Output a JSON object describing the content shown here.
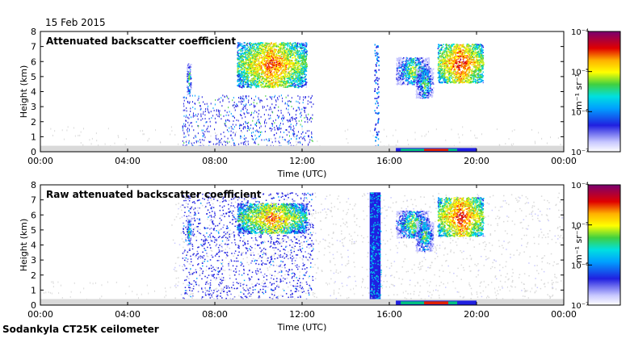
{
  "header": {
    "date": "15 Feb 2015"
  },
  "footer": {
    "instrument": "Sodankyla CT25K ceilometer"
  },
  "colors": {
    "cloud_gray": "#d9d9d9",
    "colormap": [
      "#ffffff",
      "#c8c8ff",
      "#7070f0",
      "#2020e0",
      "#00a0ff",
      "#00e0e0",
      "#40d040",
      "#b0e030",
      "#ffff00",
      "#ffb000",
      "#ff5000",
      "#e00000",
      "#b00040",
      "#7a0070"
    ]
  },
  "chart_data": [
    {
      "type": "heatmap",
      "title": "Attenuated backscatter coefficient",
      "xlabel": "Time (UTC)",
      "ylabel": "Height (km)",
      "xticks": [
        "00:00",
        "04:00",
        "08:00",
        "12:00",
        "16:00",
        "20:00",
        "00:00"
      ],
      "xlim": [
        0,
        24
      ],
      "ylim": [
        0,
        8
      ],
      "yticks": [
        "0",
        "1",
        "2",
        "3",
        "4",
        "5",
        "6",
        "7",
        "8"
      ],
      "colorbar": {
        "label": "m⁻¹ sr⁻¹",
        "scale": "log",
        "range": [
          1e-07,
          0.0001
        ],
        "ticks": [
          "10⁻⁷",
          "10⁻⁶",
          "10⁻⁵",
          "10⁻⁴"
        ]
      },
      "features": [
        {
          "kind": "thin_cloud",
          "t_start": 6.7,
          "t_end": 6.9,
          "h_bottom": 3.8,
          "h_top": 5.9,
          "intensity": 0.55
        },
        {
          "kind": "thick_cloud",
          "t_start": 9.0,
          "t_end": 12.2,
          "h_bottom": 4.3,
          "h_top": 7.3,
          "intensity": 0.85
        },
        {
          "kind": "thick_cloud",
          "t_start": 16.3,
          "t_end": 17.8,
          "h_bottom": 4.5,
          "h_top": 6.3,
          "intensity": 0.6
        },
        {
          "kind": "thick_cloud",
          "t_start": 17.2,
          "t_end": 18.0,
          "h_bottom": 3.6,
          "h_top": 5.6,
          "intensity": 0.55
        },
        {
          "kind": "thick_cloud",
          "t_start": 18.2,
          "t_end": 20.3,
          "h_bottom": 4.6,
          "h_top": 7.2,
          "intensity": 0.9
        },
        {
          "kind": "precip",
          "t_start": 6.5,
          "t_end": 12.5,
          "h_bottom": 0.4,
          "h_top": 3.8,
          "intensity": 0.25
        },
        {
          "kind": "streak",
          "t_start": 15.3,
          "t_end": 15.5,
          "h_bottom": 0.0,
          "h_top": 7.2,
          "intensity": 0.3
        },
        {
          "kind": "boundary_layer",
          "t_start": 0.0,
          "t_end": 24.0,
          "h_bottom": 0.0,
          "h_top": 0.4,
          "intensity": 0.1
        },
        {
          "kind": "surface",
          "t_start": 16.3,
          "t_end": 20.0,
          "h_bottom": 0.0,
          "h_top": 0.25,
          "intensity": 0.95
        }
      ]
    },
    {
      "type": "heatmap",
      "title": "Raw attenuated backscatter coefficient",
      "xlabel": "Time (UTC)",
      "ylabel": "Height (km)",
      "xticks": [
        "00:00",
        "04:00",
        "08:00",
        "12:00",
        "16:00",
        "20:00",
        "00:00"
      ],
      "xlim": [
        0,
        24
      ],
      "ylim": [
        0,
        8
      ],
      "yticks": [
        "0",
        "1",
        "2",
        "3",
        "4",
        "5",
        "6",
        "7",
        "8"
      ],
      "colorbar": {
        "label": "m⁻¹ sr⁻¹",
        "scale": "log",
        "range": [
          1e-07,
          0.0001
        ],
        "ticks": [
          "10⁻⁷",
          "10⁻⁶",
          "10⁻⁵",
          "10⁻⁴"
        ]
      },
      "features": [
        {
          "kind": "noise",
          "t_start": 6.0,
          "t_end": 24.0,
          "h_bottom": 0.0,
          "h_top": 7.5,
          "intensity": 0.2
        },
        {
          "kind": "noise_blue",
          "t_start": 6.5,
          "t_end": 12.5,
          "h_bottom": 0.4,
          "h_top": 7.5,
          "intensity": 0.35
        },
        {
          "kind": "column",
          "t_start": 15.1,
          "t_end": 15.6,
          "h_bottom": 0.0,
          "h_top": 7.5,
          "intensity": 0.45
        },
        {
          "kind": "thin_cloud",
          "t_start": 6.7,
          "t_end": 6.9,
          "h_bottom": 4.0,
          "h_top": 5.8,
          "intensity": 0.55
        },
        {
          "kind": "thick_cloud",
          "t_start": 9.0,
          "t_end": 12.2,
          "h_bottom": 4.8,
          "h_top": 6.8,
          "intensity": 0.8
        },
        {
          "kind": "thick_cloud",
          "t_start": 16.3,
          "t_end": 17.8,
          "h_bottom": 4.5,
          "h_top": 6.3,
          "intensity": 0.6
        },
        {
          "kind": "thick_cloud",
          "t_start": 17.2,
          "t_end": 18.0,
          "h_bottom": 3.6,
          "h_top": 5.6,
          "intensity": 0.55
        },
        {
          "kind": "thick_cloud",
          "t_start": 18.2,
          "t_end": 20.3,
          "h_bottom": 4.6,
          "h_top": 7.2,
          "intensity": 0.9
        },
        {
          "kind": "boundary_layer",
          "t_start": 0.0,
          "t_end": 24.0,
          "h_bottom": 0.0,
          "h_top": 0.4,
          "intensity": 0.1
        },
        {
          "kind": "surface",
          "t_start": 16.3,
          "t_end": 20.0,
          "h_bottom": 0.0,
          "h_top": 0.3,
          "intensity": 0.95
        }
      ]
    }
  ]
}
